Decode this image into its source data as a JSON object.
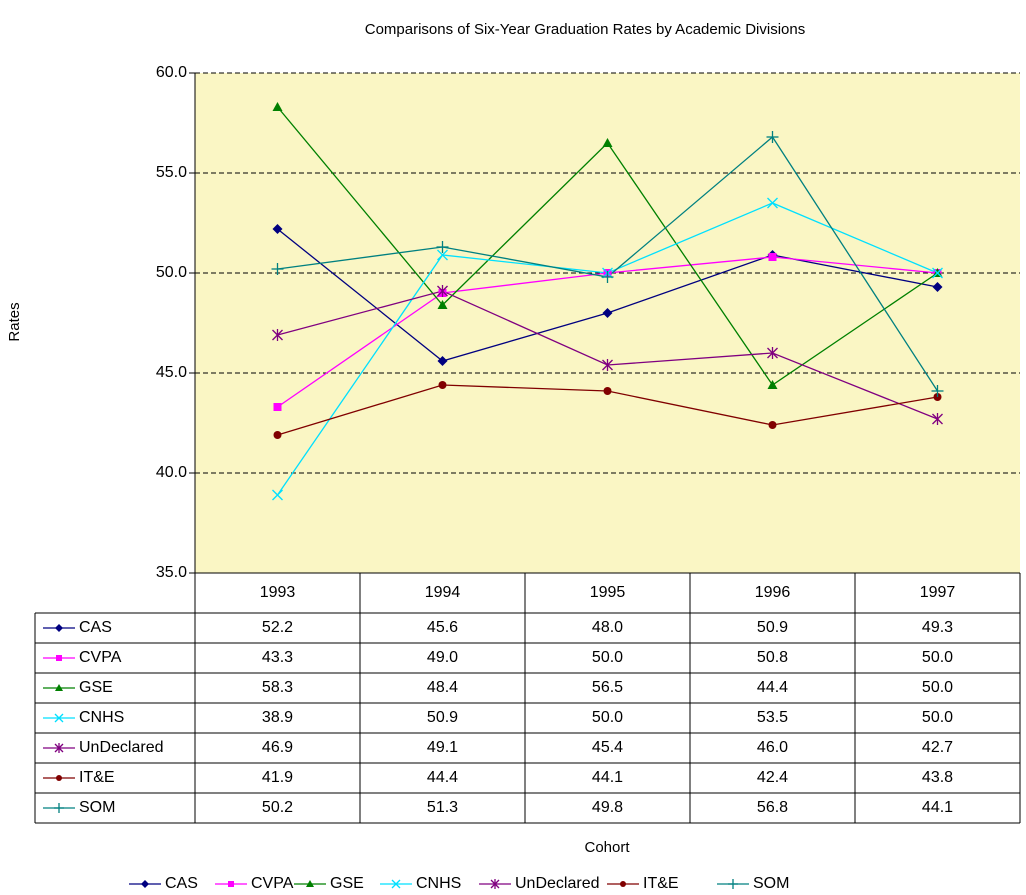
{
  "chart_data": {
    "type": "line",
    "title": "Comparisons of Six-Year Graduation Rates by Academic Divisions",
    "y_label": "Rates",
    "x_label": "Cohort",
    "categories": [
      "1993",
      "1994",
      "1995",
      "1996",
      "1997"
    ],
    "ylim": [
      35,
      60
    ],
    "yticks": [
      {
        "value": 35,
        "label": "35.0"
      },
      {
        "value": 40,
        "label": "40.0"
      },
      {
        "value": 45,
        "label": "45.0"
      },
      {
        "value": 50,
        "label": "50.0"
      },
      {
        "value": 55,
        "label": "55.0"
      },
      {
        "value": 60,
        "label": "60.0"
      }
    ],
    "grid": true,
    "plot_background": "#faf6c4",
    "legend": "bottom",
    "series": [
      {
        "name": "CAS",
        "color": "#000080",
        "marker": "diamond",
        "values": [
          52.2,
          45.6,
          48.0,
          50.9,
          49.3
        ],
        "value_labels": [
          "52.2",
          "45.6",
          "48.0",
          "50.9",
          "49.3"
        ]
      },
      {
        "name": "CVPA",
        "color": "#ff00ff",
        "marker": "square",
        "values": [
          43.3,
          49.0,
          50.0,
          50.8,
          50.0
        ],
        "value_labels": [
          "43.3",
          "49.0",
          "50.0",
          "50.8",
          "50.0"
        ]
      },
      {
        "name": "GSE",
        "color": "#008000",
        "marker": "triangle",
        "values": [
          58.3,
          48.4,
          56.5,
          44.4,
          50.0
        ],
        "value_labels": [
          "58.3",
          "48.4",
          "56.5",
          "44.4",
          "50.0"
        ]
      },
      {
        "name": "CNHS",
        "color": "#00e0ff",
        "marker": "x",
        "values": [
          38.9,
          50.9,
          50.0,
          53.5,
          50.0
        ],
        "value_labels": [
          "38.9",
          "50.9",
          "50.0",
          "53.5",
          "50.0"
        ]
      },
      {
        "name": "UnDeclared",
        "color": "#800080",
        "marker": "star",
        "values": [
          46.9,
          49.1,
          45.4,
          46.0,
          42.7
        ],
        "value_labels": [
          "46.9",
          "49.1",
          "45.4",
          "46.0",
          "42.7"
        ]
      },
      {
        "name": "IT&E",
        "color": "#800000",
        "marker": "circle",
        "values": [
          41.9,
          44.4,
          44.1,
          42.4,
          43.8
        ],
        "value_labels": [
          "41.9",
          "44.4",
          "44.1",
          "42.4",
          "43.8"
        ]
      },
      {
        "name": "SOM",
        "color": "#008080",
        "marker": "plus",
        "values": [
          50.2,
          51.3,
          49.8,
          56.8,
          44.1
        ],
        "value_labels": [
          "50.2",
          "51.3",
          "49.8",
          "56.8",
          "44.1"
        ]
      }
    ]
  }
}
